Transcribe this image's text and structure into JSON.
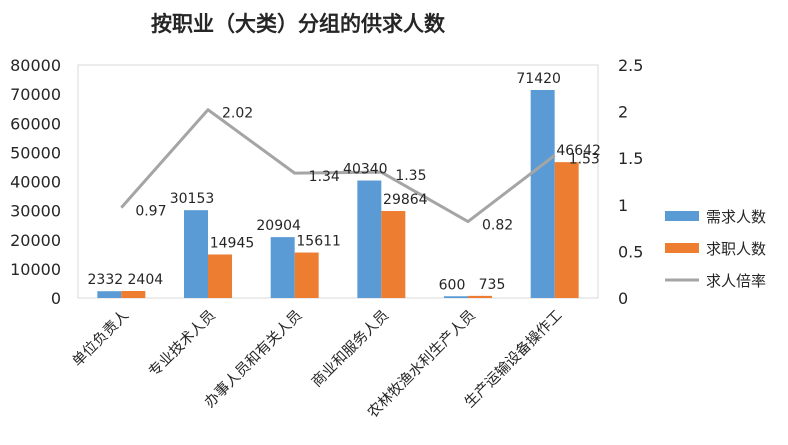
{
  "chart_data": {
    "type": "bar",
    "title": "按职业（大类）分组的供求人数",
    "categories": [
      "单位负责人",
      "专业技术人员",
      "办事人员和有关人员",
      "商业和服务人员",
      "农林牧渔水利生产人员",
      "生产运输设备操作工"
    ],
    "series": [
      {
        "name": "需求人数",
        "kind": "bar",
        "axis": "left",
        "color": "#5B9BD5",
        "values": [
          2332,
          30153,
          20904,
          40340,
          600,
          71420
        ],
        "labels": [
          "2332",
          "30153",
          "20904",
          "40340",
          "600",
          "71420"
        ]
      },
      {
        "name": "求职人数",
        "kind": "bar",
        "axis": "left",
        "color": "#ED7D31",
        "values": [
          2404,
          14945,
          15611,
          29864,
          735,
          46642
        ],
        "labels": [
          "2404",
          "14945",
          "15611",
          "29864",
          "735",
          "46642"
        ]
      },
      {
        "name": "求人倍率",
        "kind": "line",
        "axis": "right",
        "color": "#A5A5A5",
        "values": [
          0.97,
          2.02,
          1.34,
          1.35,
          0.82,
          1.53
        ],
        "labels": [
          "0.97",
          "2.02",
          "1.34",
          "1.35",
          "0.82",
          "1.53"
        ]
      }
    ],
    "y_left": {
      "ylim": [
        0,
        80000
      ],
      "ticks": [
        "0",
        "10000",
        "20000",
        "30000",
        "40000",
        "50000",
        "60000",
        "70000",
        "80000"
      ]
    },
    "y_right": {
      "ylim": [
        0,
        2.5
      ],
      "ticks": [
        "0",
        "0.5",
        "1",
        "1.5",
        "2",
        "2.5"
      ]
    },
    "grid": false,
    "legend": "right"
  }
}
